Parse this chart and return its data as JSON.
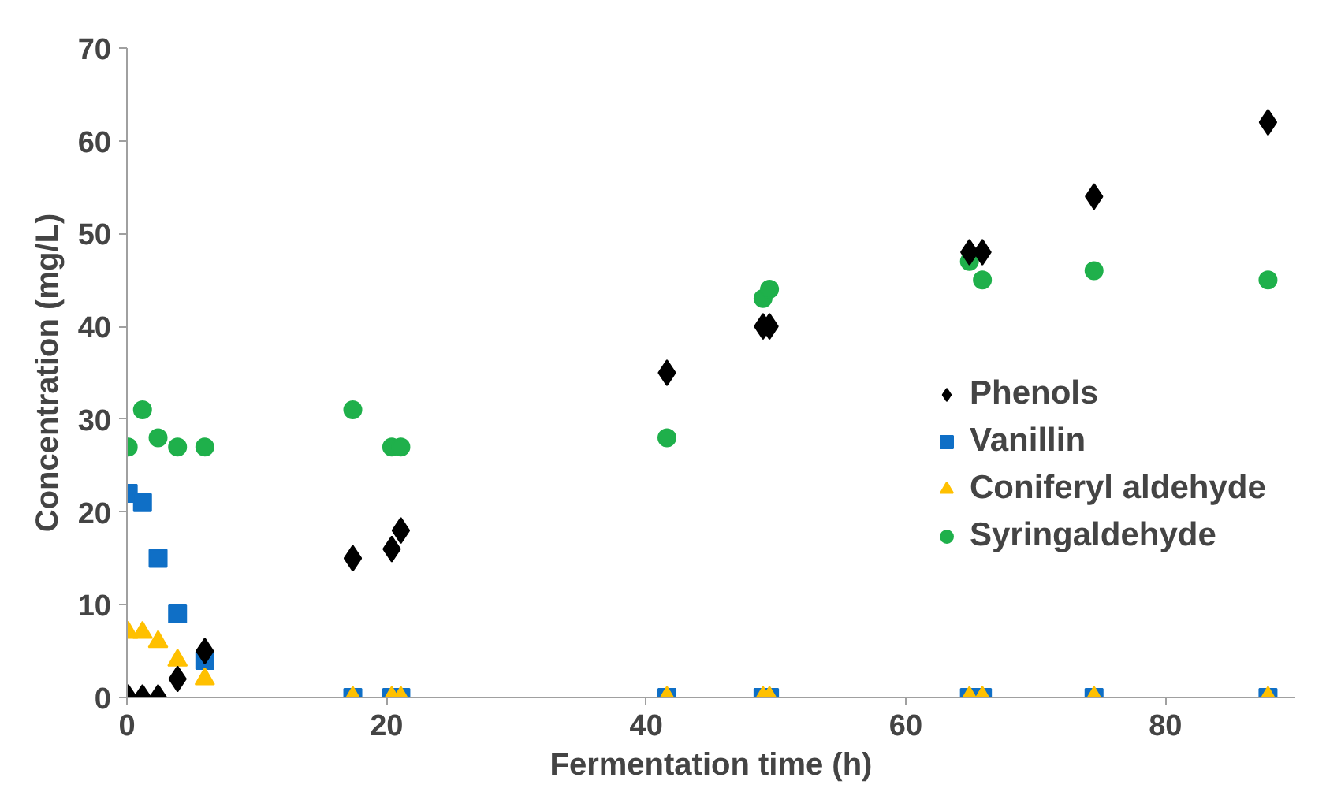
{
  "chart_data": {
    "type": "scatter",
    "xlabel": "Fermentation time (h)",
    "ylabel": "Concentration (mg/L)",
    "x": [
      0.1,
      1.2,
      2.4,
      3.9,
      6.0,
      17.4,
      20.4,
      21.1,
      41.6,
      49.0,
      49.5,
      64.9,
      65.9,
      74.5,
      87.9
    ],
    "series": [
      {
        "name": "Phenols",
        "color": "#000000",
        "marker": "diamond",
        "values": [
          0,
          0,
          0,
          2,
          5,
          15,
          16,
          18,
          35,
          40,
          40,
          48,
          48,
          54,
          62
        ]
      },
      {
        "name": "Vanillin",
        "color": "#0f6fc6",
        "marker": "square",
        "values": [
          22,
          21,
          15,
          9,
          4,
          0,
          0,
          0,
          0,
          0,
          0,
          0,
          0,
          0,
          0
        ]
      },
      {
        "name": "Coniferyl aldehyde",
        "color": "#ffc000",
        "marker": "triangle",
        "values": [
          7,
          7,
          6,
          4,
          2,
          0,
          0,
          0,
          0,
          0,
          0,
          0,
          0,
          0,
          0
        ]
      },
      {
        "name": "Syringaldehyde",
        "color": "#1fb04b",
        "marker": "circle",
        "values": [
          27,
          31,
          28,
          27,
          27,
          31,
          27,
          27,
          28,
          43,
          44,
          47,
          45,
          46,
          45
        ]
      }
    ],
    "xlim": [
      0,
      90
    ],
    "xticks": [
      0,
      20,
      40,
      60,
      80
    ],
    "ylim": [
      0,
      70
    ],
    "yticks": [
      0,
      10,
      20,
      30,
      40,
      50,
      60,
      70
    ],
    "grid": false,
    "legend": "right"
  }
}
